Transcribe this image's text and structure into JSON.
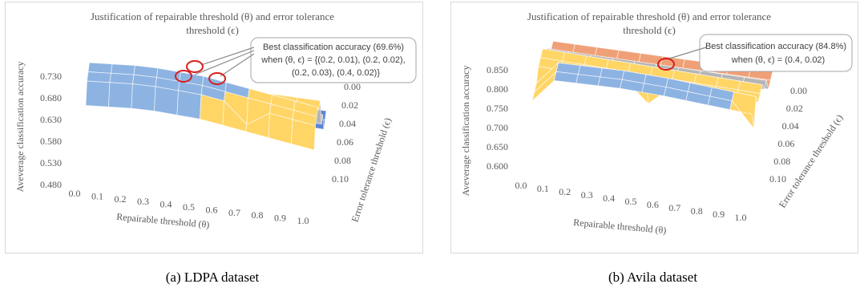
{
  "chart_data": [
    {
      "type": "surface",
      "title": "Justification of repairable threshold (θ) and error tolerance threshold (ϵ)",
      "title_lines": [
        "Justification of repairable threshold (θ) and error tolerance",
        "threshold (ϵ)"
      ],
      "xlabel": "Repairable threshold (θ)",
      "ylabel": "Error tolerance threshold (ϵ)",
      "zlabel": "Aveverage classification accuracy",
      "x_ticks": [
        "0.0",
        "0.1",
        "0.2",
        "0.3",
        "0.4",
        "0.5",
        "0.6",
        "0.7",
        "0.8",
        "0.9",
        "1.0"
      ],
      "y_ticks": [
        "0.00",
        "0.02",
        "0.04",
        "0.06",
        "0.08",
        "0.10"
      ],
      "z_ticks": [
        "0.480",
        "0.530",
        "0.580",
        "0.630",
        "0.680",
        "0.730"
      ],
      "zlim": [
        0.48,
        0.73
      ],
      "band_colors": [
        "#5b86d6",
        "#f0a077",
        "#b5b5b5",
        "#ffd566",
        "#8db3e2"
      ],
      "annotation_lines": [
        "Best classification accuracy (69.6%)",
        "when (θ, ϵ) = {(0.2, 0.01), (0.2, 0.02),",
        "(0.2, 0.03), (0.4, 0.02)}"
      ],
      "best_points": [
        {
          "x": 0.2,
          "y": 0.01
        },
        {
          "x": 0.2,
          "y": 0.02
        },
        {
          "x": 0.2,
          "y": 0.03
        },
        {
          "x": 0.4,
          "y": 0.02
        }
      ],
      "caption": "(a)  LDPA dataset"
    },
    {
      "type": "surface",
      "title": "Justification of repairable threshold (θ) and error tolerance threshold (ϵ)",
      "title_lines": [
        "Justification of repairable threshold (θ) and error tolerance",
        "threshold (ϵ)"
      ],
      "xlabel": "Repairable threshold (θ)",
      "ylabel": "Error tolerance threshold (ϵ)",
      "zlabel": "Aveverage classification accuracy",
      "x_ticks": [
        "0.0",
        "0.1",
        "0.2",
        "0.3",
        "0.4",
        "0.5",
        "0.6",
        "0.7",
        "0.8",
        "0.9",
        "1.0"
      ],
      "y_ticks": [
        "0.00",
        "0.02",
        "0.04",
        "0.06",
        "0.08",
        "0.10"
      ],
      "z_ticks": [
        "0.600",
        "0.650",
        "0.700",
        "0.750",
        "0.800",
        "0.850"
      ],
      "zlim": [
        0.6,
        0.85
      ],
      "band_colors": [
        "#f0a077",
        "#b5b5b5",
        "#ffd566",
        "#8db3e2"
      ],
      "annotation_lines": [
        "Best classification accuracy (84.8%)",
        "when (θ, ϵ) = (0.4, 0.02)"
      ],
      "best_points": [
        {
          "x": 0.4,
          "y": 0.02
        }
      ],
      "caption": "(b)  Avila dataset"
    }
  ]
}
